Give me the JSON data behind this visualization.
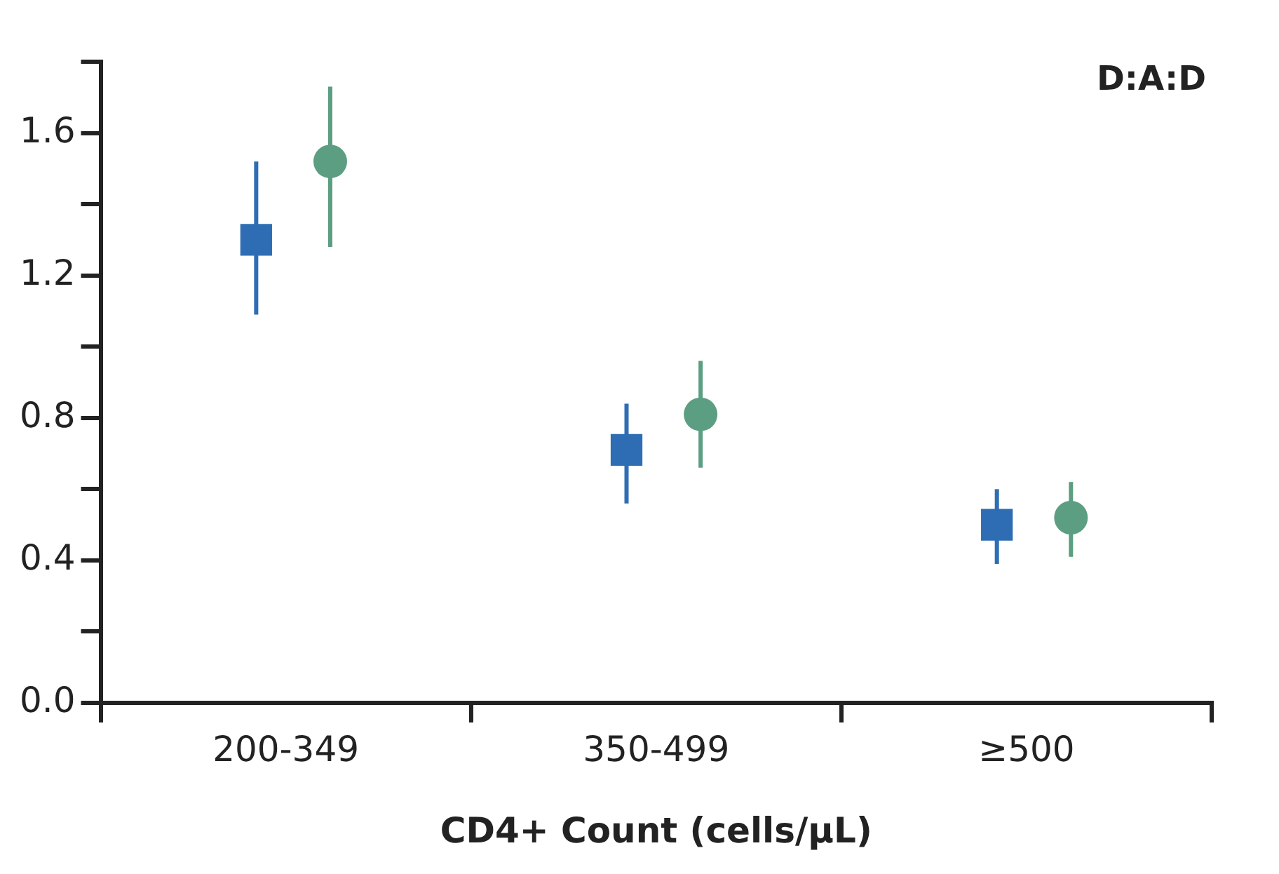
{
  "chart_data": {
    "type": "scatter",
    "xlabel": "CD4+ Count (cells/μL)",
    "annotations": [
      "D:A:D"
    ],
    "categories": [
      "200-349",
      "350-499",
      "≥500"
    ],
    "series": [
      {
        "color": "#2e6db4",
        "marker": "square",
        "values": [
          1.3,
          0.71,
          0.5
        ],
        "errors": [
          [
            1.09,
            1.52
          ],
          [
            0.56,
            0.84
          ],
          [
            0.39,
            0.6
          ]
        ]
      },
      {
        "color": "#5c9e82",
        "marker": "circle",
        "values": [
          1.52,
          0.81,
          0.52
        ],
        "errors": [
          [
            1.28,
            1.73
          ],
          [
            0.66,
            0.96
          ],
          [
            0.41,
            0.62
          ]
        ]
      }
    ],
    "ylim": [
      0,
      1.8
    ],
    "yticks": [
      {
        "value": 0,
        "label": "0.0"
      },
      {
        "value": 0.2,
        "label": null
      },
      0.4,
      {
        "value": 0.6,
        "label": null
      },
      0.8,
      {
        "value": 1.0,
        "label": null
      },
      1.2,
      {
        "value": 1.4,
        "label": null
      },
      1.6,
      {
        "value": 1.8,
        "label": null
      }
    ],
    "grid": false,
    "legend": false
  }
}
